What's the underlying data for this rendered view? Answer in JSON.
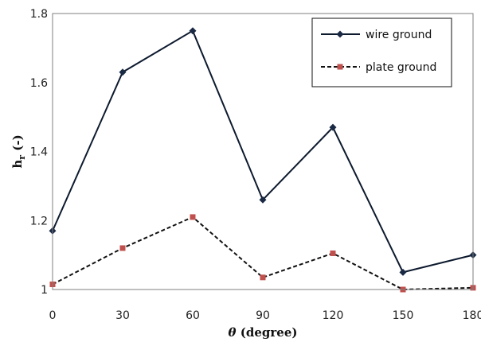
{
  "chart_data": {
    "type": "line",
    "x": [
      0,
      30,
      60,
      90,
      120,
      150,
      180
    ],
    "xlim": [
      0,
      180
    ],
    "ylim": [
      1,
      1.8
    ],
    "x_ticks": [
      "0",
      "30",
      "60",
      "90",
      "120",
      "150",
      "180"
    ],
    "y_ticks": [
      "1",
      "1.2",
      "1.4",
      "1.6",
      "1.8"
    ],
    "xlabel": "θ (degree)",
    "ylabel_main": "h",
    "ylabel_sub": "r",
    "ylabel_unit": "(-)",
    "grid": false,
    "legend_position": "top-right",
    "series": [
      {
        "name": "wire ground",
        "values": [
          1.17,
          1.63,
          1.75,
          1.26,
          1.47,
          1.05,
          1.1
        ],
        "color": "#0d1a2e",
        "marker_color": "#1a2a44",
        "line_style": "solid",
        "marker": "diamond"
      },
      {
        "name": "plate ground",
        "values": [
          1.015,
          1.12,
          1.21,
          1.035,
          1.105,
          1.0,
          1.005
        ],
        "color": "#111111",
        "marker_color": "#c0504d",
        "line_style": "dashed",
        "marker": "square"
      }
    ]
  }
}
